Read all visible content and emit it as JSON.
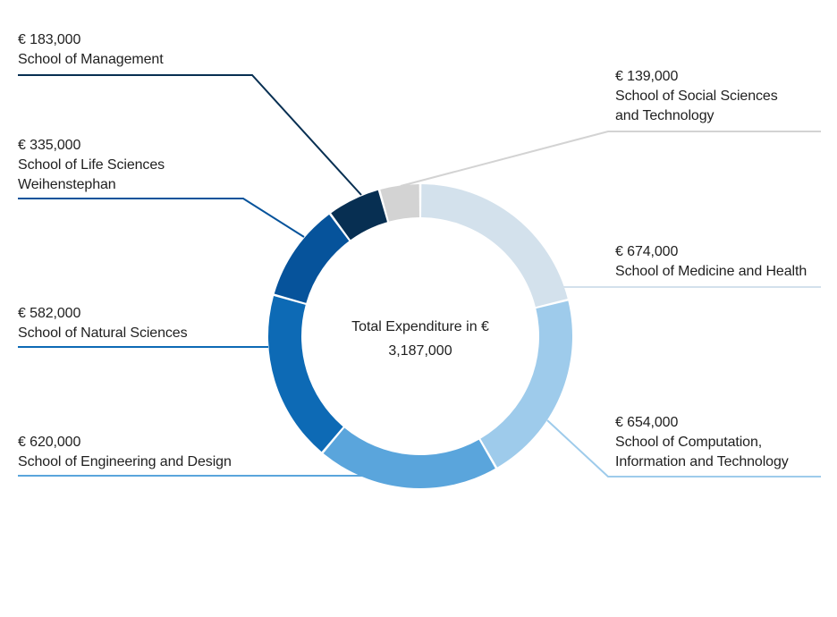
{
  "chart_data": {
    "type": "pie",
    "center": {
      "title": "Total Expenditure in €",
      "total": "3,187,000"
    },
    "slices": [
      {
        "value": 674000,
        "value_label": "€ 674,000",
        "lines": [
          "School of Medicine and Health"
        ],
        "color": "#d3e1ec"
      },
      {
        "value": 654000,
        "value_label": "€ 654,000",
        "lines": [
          "School of Computation,",
          "Information and Technology"
        ],
        "color": "#9ecbeb"
      },
      {
        "value": 620000,
        "value_label": "€ 620,000",
        "lines": [
          "School of Engineering and Design"
        ],
        "color": "#5aa5dc"
      },
      {
        "value": 582000,
        "value_label": "€ 582,000",
        "lines": [
          "School of Natural Sciences"
        ],
        "color": "#0d6ab5"
      },
      {
        "value": 335000,
        "value_label": "€ 335,000",
        "lines": [
          "School of Life Sciences",
          "Weihenstephan"
        ],
        "color": "#06539b"
      },
      {
        "value": 183000,
        "value_label": "€ 183,000",
        "lines": [
          "School of Management"
        ],
        "color": "#072f52"
      },
      {
        "value": 139000,
        "value_label": "€ 139,000",
        "lines": [
          "School of Social Sciences",
          "and Technology"
        ],
        "color": "#d3d3d3"
      }
    ]
  }
}
